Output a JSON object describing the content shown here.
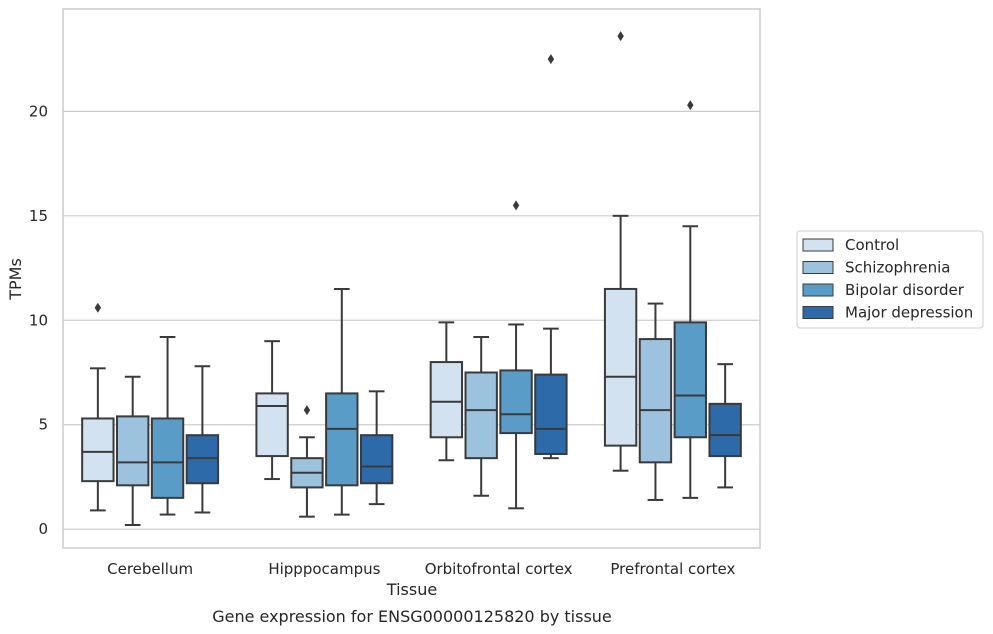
{
  "chart_data": {
    "type": "box",
    "title": "",
    "caption": "Gene expression for ENSG00000125820 by tissue",
    "xlabel": "Tissue",
    "ylabel": "TPMs",
    "ylim": [
      -0.9,
      24.9
    ],
    "yticks": [
      0,
      5,
      10,
      15,
      20
    ],
    "grid": "horizontal",
    "legend_position": "right",
    "categories": [
      "Cerebellum",
      "Hipppocampus",
      "Orbitofrontal cortex",
      "Prefrontal cortex"
    ],
    "series": [
      {
        "name": "Control",
        "color": "#d3e2f0",
        "boxes": [
          {
            "whislo": 0.9,
            "q1": 2.3,
            "med": 3.7,
            "q3": 5.3,
            "whishi": 7.7,
            "fliers": [
              10.6
            ]
          },
          {
            "whislo": 2.4,
            "q1": 3.5,
            "med": 5.9,
            "q3": 6.5,
            "whishi": 9.0,
            "fliers": []
          },
          {
            "whislo": 3.3,
            "q1": 4.4,
            "med": 6.1,
            "q3": 8.0,
            "whishi": 9.9,
            "fliers": []
          },
          {
            "whislo": 2.8,
            "q1": 4.0,
            "med": 7.3,
            "q3": 11.5,
            "whishi": 15.0,
            "fliers": [
              23.6
            ]
          }
        ]
      },
      {
        "name": "Schizophrenia",
        "color": "#9cc3dd",
        "boxes": [
          {
            "whislo": 0.2,
            "q1": 2.1,
            "med": 3.2,
            "q3": 5.4,
            "whishi": 7.3,
            "fliers": []
          },
          {
            "whislo": 0.6,
            "q1": 2.0,
            "med": 2.7,
            "q3": 3.4,
            "whishi": 4.4,
            "fliers": [
              5.7
            ]
          },
          {
            "whislo": 1.6,
            "q1": 3.4,
            "med": 5.7,
            "q3": 7.5,
            "whishi": 9.2,
            "fliers": []
          },
          {
            "whislo": 1.4,
            "q1": 3.2,
            "med": 5.7,
            "q3": 9.1,
            "whishi": 10.8,
            "fliers": []
          }
        ]
      },
      {
        "name": "Bipolar disorder",
        "color": "#5a9cc8",
        "boxes": [
          {
            "whislo": 0.7,
            "q1": 1.5,
            "med": 3.2,
            "q3": 5.3,
            "whishi": 9.2,
            "fliers": []
          },
          {
            "whislo": 0.7,
            "q1": 2.1,
            "med": 4.8,
            "q3": 6.5,
            "whishi": 11.5,
            "fliers": []
          },
          {
            "whislo": 1.0,
            "q1": 4.6,
            "med": 5.5,
            "q3": 7.6,
            "whishi": 9.8,
            "fliers": [
              15.5
            ]
          },
          {
            "whislo": 1.5,
            "q1": 4.4,
            "med": 6.4,
            "q3": 9.9,
            "whishi": 14.5,
            "fliers": [
              20.3
            ]
          }
        ]
      },
      {
        "name": "Major depression",
        "color": "#2d6aa9",
        "boxes": [
          {
            "whislo": 0.8,
            "q1": 2.2,
            "med": 3.4,
            "q3": 4.5,
            "whishi": 7.8,
            "fliers": []
          },
          {
            "whislo": 1.2,
            "q1": 2.2,
            "med": 3.0,
            "q3": 4.5,
            "whishi": 6.6,
            "fliers": []
          },
          {
            "whislo": 3.4,
            "q1": 3.6,
            "med": 4.8,
            "q3": 7.4,
            "whishi": 9.6,
            "fliers": [
              22.5
            ]
          },
          {
            "whislo": 2.0,
            "q1": 3.5,
            "med": 4.5,
            "q3": 6.0,
            "whishi": 7.9,
            "fliers": []
          }
        ]
      }
    ]
  }
}
